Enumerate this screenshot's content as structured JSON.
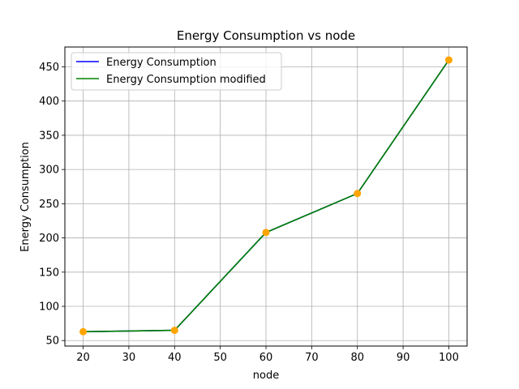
{
  "chart_data": {
    "type": "line",
    "title": "Energy Consumption vs node",
    "xlabel": "node",
    "ylabel": "Energy Consumption",
    "x": [
      20,
      40,
      60,
      80,
      100
    ],
    "x_ticks": [
      20,
      30,
      40,
      50,
      60,
      70,
      80,
      90,
      100
    ],
    "y_ticks": [
      50,
      100,
      150,
      200,
      250,
      300,
      350,
      400,
      450
    ],
    "xlim": [
      16,
      104
    ],
    "ylim": [
      42,
      479
    ],
    "grid": true,
    "legend_position": "top-left",
    "series": [
      {
        "name": "Energy Consumption",
        "color": "#0000ff",
        "values": [
          63,
          65,
          208,
          265,
          460
        ]
      },
      {
        "name": "Energy Consumption modified",
        "color": "#008000",
        "values": [
          63,
          65,
          208,
          265,
          460
        ]
      }
    ],
    "marker_color": "#ffa500",
    "marker_values": [
      63,
      65,
      208,
      265,
      460
    ]
  }
}
